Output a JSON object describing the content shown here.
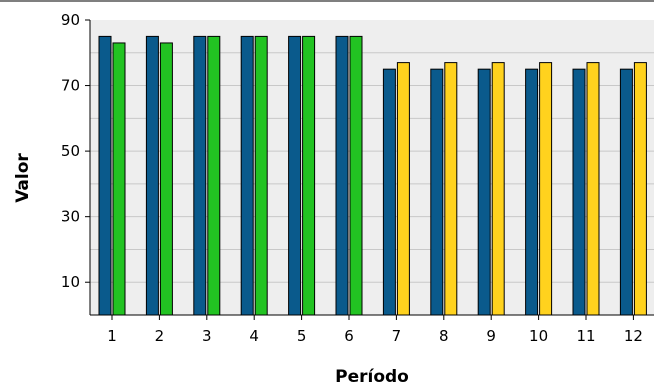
{
  "chart_data": {
    "type": "bar",
    "title": "",
    "xlabel": "Período",
    "ylabel": "Valor",
    "ylim": [
      0,
      90
    ],
    "yticks": [
      10,
      30,
      50,
      70,
      90
    ],
    "grid": true,
    "legend": "none",
    "categories": [
      "1",
      "2",
      "3",
      "4",
      "5",
      "6",
      "7",
      "8",
      "9",
      "10",
      "11",
      "12"
    ],
    "series": [
      {
        "color": "#0A5A8C",
        "values": [
          85,
          85,
          85,
          85,
          85,
          85,
          75,
          75,
          75,
          75,
          75,
          75
        ]
      },
      {
        "colors": [
          "#22C322",
          "#22C322",
          "#22C322",
          "#22C322",
          "#22C322",
          "#22C322",
          "#FFD21E",
          "#FFD21E",
          "#FFD21E",
          "#FFD21E",
          "#FFD21E",
          "#FFD21E"
        ],
        "values": [
          83,
          83,
          85,
          85,
          85,
          85,
          77,
          77,
          77,
          77,
          77,
          77
        ]
      }
    ],
    "colors": {
      "plot_background": "#EEEEEE",
      "gridline": "#C8C8C8",
      "bar_outline": "#000000"
    }
  }
}
